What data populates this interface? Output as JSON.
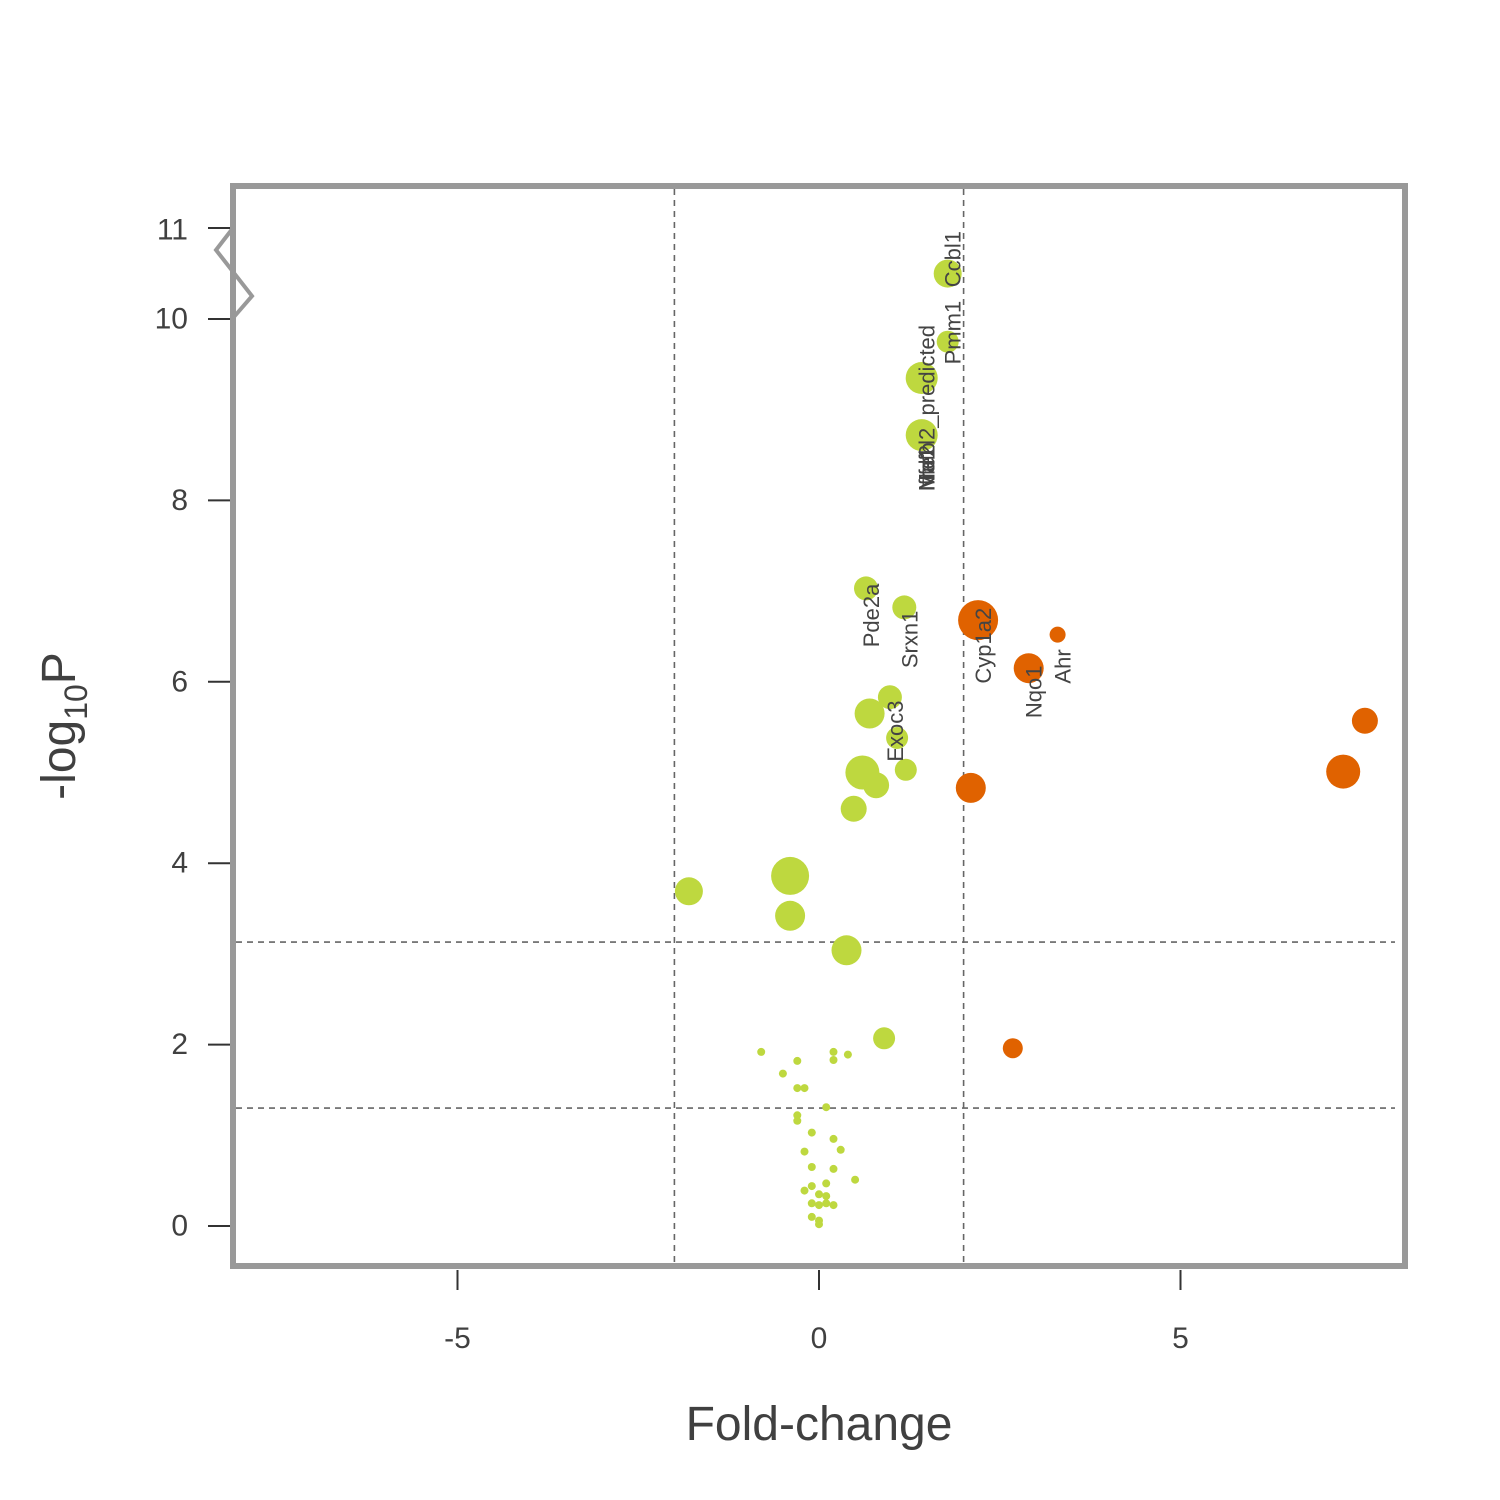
{
  "chart_data": {
    "type": "scatter",
    "title": "",
    "xlabel": "Fold-change",
    "ylabel_base": "-log",
    "ylabel_sub": "10",
    "ylabel_end": "P",
    "xlim": [
      -8.1,
      8.1
    ],
    "ylim": [
      -0.35,
      11.3
    ],
    "xticks": [
      -5,
      0,
      5
    ],
    "yticks": [
      0,
      2,
      4,
      6,
      8,
      10
    ],
    "ybreak_tick": {
      "value": 11,
      "label": "11"
    },
    "x_thresholds": [
      -2,
      2
    ],
    "y_thresholds": [
      1.3,
      3.13
    ],
    "colors": {
      "nonsig": "#bed83f",
      "sig": "#e06200",
      "frame": "#999999",
      "guide": "#666666"
    },
    "points": [
      {
        "x": 1.78,
        "y": 10.5,
        "r": 14,
        "group": "nonsig"
      },
      {
        "x": 1.78,
        "y": 9.75,
        "r": 11,
        "group": "nonsig"
      },
      {
        "x": 1.42,
        "y": 9.35,
        "r": 16,
        "group": "nonsig"
      },
      {
        "x": 1.42,
        "y": 8.72,
        "r": 16,
        "group": "nonsig"
      },
      {
        "x": 0.65,
        "y": 7.03,
        "r": 12,
        "group": "nonsig"
      },
      {
        "x": 1.18,
        "y": 6.82,
        "r": 12,
        "group": "nonsig"
      },
      {
        "x": 2.2,
        "y": 6.68,
        "r": 20,
        "group": "sig"
      },
      {
        "x": 3.3,
        "y": 6.52,
        "r": 8,
        "group": "sig"
      },
      {
        "x": 2.9,
        "y": 6.15,
        "r": 15,
        "group": "sig"
      },
      {
        "x": 0.98,
        "y": 5.83,
        "r": 12,
        "group": "nonsig"
      },
      {
        "x": 0.7,
        "y": 5.65,
        "r": 15,
        "group": "nonsig"
      },
      {
        "x": 7.55,
        "y": 5.57,
        "r": 13,
        "group": "sig"
      },
      {
        "x": 1.08,
        "y": 5.38,
        "r": 11,
        "group": "nonsig"
      },
      {
        "x": 1.2,
        "y": 5.03,
        "r": 11,
        "group": "nonsig"
      },
      {
        "x": 0.6,
        "y": 5.0,
        "r": 17,
        "group": "nonsig"
      },
      {
        "x": 7.25,
        "y": 5.01,
        "r": 17,
        "group": "sig"
      },
      {
        "x": 0.79,
        "y": 4.86,
        "r": 13,
        "group": "nonsig"
      },
      {
        "x": 2.1,
        "y": 4.83,
        "r": 15,
        "group": "sig"
      },
      {
        "x": 0.48,
        "y": 4.6,
        "r": 13,
        "group": "nonsig"
      },
      {
        "x": -0.4,
        "y": 3.86,
        "r": 19,
        "group": "nonsig"
      },
      {
        "x": -1.8,
        "y": 3.69,
        "r": 14,
        "group": "nonsig"
      },
      {
        "x": -0.4,
        "y": 3.42,
        "r": 15,
        "group": "nonsig"
      },
      {
        "x": 0.38,
        "y": 3.04,
        "r": 15,
        "group": "nonsig"
      },
      {
        "x": 0.9,
        "y": 2.07,
        "r": 11,
        "group": "nonsig"
      },
      {
        "x": 2.68,
        "y": 1.96,
        "r": 10,
        "group": "sig"
      },
      {
        "x": -0.8,
        "y": 1.92,
        "r": 4,
        "group": "nonsig"
      },
      {
        "x": 0.2,
        "y": 1.92,
        "r": 4,
        "group": "nonsig"
      },
      {
        "x": 0.4,
        "y": 1.89,
        "r": 4,
        "group": "nonsig"
      },
      {
        "x": -0.3,
        "y": 1.82,
        "r": 4,
        "group": "nonsig"
      },
      {
        "x": 0.2,
        "y": 1.83,
        "r": 4,
        "group": "nonsig"
      },
      {
        "x": -0.5,
        "y": 1.68,
        "r": 4,
        "group": "nonsig"
      },
      {
        "x": -0.3,
        "y": 1.52,
        "r": 4,
        "group": "nonsig"
      },
      {
        "x": -0.2,
        "y": 1.52,
        "r": 4,
        "group": "nonsig"
      },
      {
        "x": 0.1,
        "y": 1.31,
        "r": 4,
        "group": "nonsig"
      },
      {
        "x": -0.3,
        "y": 1.22,
        "r": 4,
        "group": "nonsig"
      },
      {
        "x": -0.3,
        "y": 1.16,
        "r": 4,
        "group": "nonsig"
      },
      {
        "x": -0.1,
        "y": 1.03,
        "r": 4,
        "group": "nonsig"
      },
      {
        "x": 0.2,
        "y": 0.96,
        "r": 4,
        "group": "nonsig"
      },
      {
        "x": 0.3,
        "y": 0.84,
        "r": 4,
        "group": "nonsig"
      },
      {
        "x": -0.2,
        "y": 0.82,
        "r": 4,
        "group": "nonsig"
      },
      {
        "x": -0.1,
        "y": 0.65,
        "r": 4,
        "group": "nonsig"
      },
      {
        "x": 0.2,
        "y": 0.63,
        "r": 4,
        "group": "nonsig"
      },
      {
        "x": 0.5,
        "y": 0.51,
        "r": 4,
        "group": "nonsig"
      },
      {
        "x": 0.1,
        "y": 0.47,
        "r": 4,
        "group": "nonsig"
      },
      {
        "x": -0.1,
        "y": 0.44,
        "r": 4,
        "group": "nonsig"
      },
      {
        "x": -0.2,
        "y": 0.39,
        "r": 4,
        "group": "nonsig"
      },
      {
        "x": 0.0,
        "y": 0.35,
        "r": 4,
        "group": "nonsig"
      },
      {
        "x": 0.1,
        "y": 0.33,
        "r": 4,
        "group": "nonsig"
      },
      {
        "x": -0.1,
        "y": 0.25,
        "r": 4,
        "group": "nonsig"
      },
      {
        "x": 0.1,
        "y": 0.25,
        "r": 4,
        "group": "nonsig"
      },
      {
        "x": 0.2,
        "y": 0.23,
        "r": 4,
        "group": "nonsig"
      },
      {
        "x": 0.0,
        "y": 0.23,
        "r": 4,
        "group": "nonsig"
      },
      {
        "x": -0.1,
        "y": 0.1,
        "r": 4,
        "group": "nonsig"
      },
      {
        "x": 0.0,
        "y": 0.06,
        "r": 4,
        "group": "nonsig"
      },
      {
        "x": 0.0,
        "y": 0.02,
        "r": 4,
        "group": "nonsig"
      }
    ],
    "annotations": [
      {
        "text": "Ccbl1",
        "x": 1.88,
        "y": 10.35
      },
      {
        "text": "Pmm1",
        "x": 1.88,
        "y": 9.5
      },
      {
        "text": "Nfe2l2_predicted",
        "x": 1.52,
        "y": 8.1
      },
      {
        "text": "Ifrd1",
        "x": 1.52,
        "y": 8.1
      },
      {
        "text": "Mafb",
        "x": 1.52,
        "y": 8.1
      },
      {
        "text": "Pde2a",
        "x": 0.75,
        "y": 6.38
      },
      {
        "text": "Srxn1",
        "x": 1.28,
        "y": 6.15
      },
      {
        "text": "Cyp1a2",
        "x": 2.3,
        "y": 5.98
      },
      {
        "text": "Ahr",
        "x": 3.4,
        "y": 5.98
      },
      {
        "text": "Nqo1",
        "x": 3.0,
        "y": 5.6
      },
      {
        "text": "Exoc3",
        "x": 1.08,
        "y": 5.12
      }
    ]
  }
}
